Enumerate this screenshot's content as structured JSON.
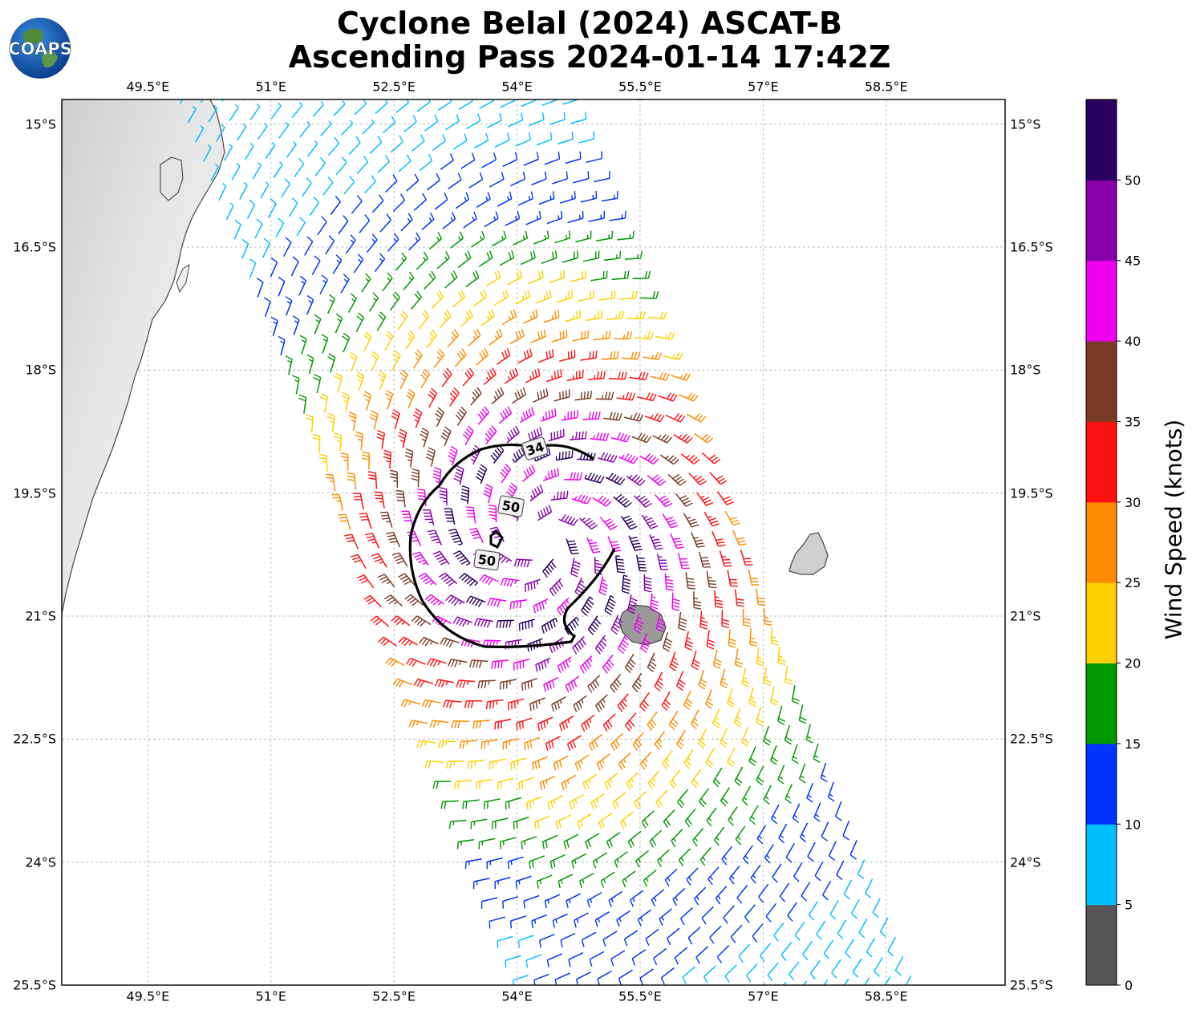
{
  "title": {
    "line1": "Cyclone Belal (2024) ASCAT-B",
    "line2": "Ascending Pass 2024-01-14 17:42Z"
  },
  "logo": {
    "text": "COAPS",
    "icon": "globe-logo"
  },
  "map": {
    "lon_range": [
      48.45,
      59.95
    ],
    "lat_range": [
      -25.5,
      -14.7
    ],
    "lon_ticks": [
      "49.5°E",
      "51°E",
      "52.5°E",
      "54°E",
      "55.5°E",
      "57°E",
      "58.5°E"
    ],
    "lat_ticks": [
      "15°S",
      "16.5°S",
      "18°S",
      "19.5°S",
      "21°S",
      "22.5°S",
      "24°S",
      "25.5°S"
    ],
    "gridlines": true,
    "storm_center": {
      "lon": 54.3,
      "lat": -20.05
    },
    "contour_labels": [
      "34",
      "50",
      "50"
    ]
  },
  "colorbar": {
    "label": "Wind Speed (knots)",
    "ticks": [
      "0",
      "5",
      "10",
      "15",
      "20",
      "25",
      "30",
      "35",
      "40",
      "45",
      "50"
    ],
    "colors": [
      "#555555",
      "#00bfff",
      "#0033ff",
      "#009900",
      "#ffd000",
      "#ff8c00",
      "#ff1010",
      "#7b3a26",
      "#ee00ee",
      "#8800aa",
      "#2a0060"
    ]
  }
}
